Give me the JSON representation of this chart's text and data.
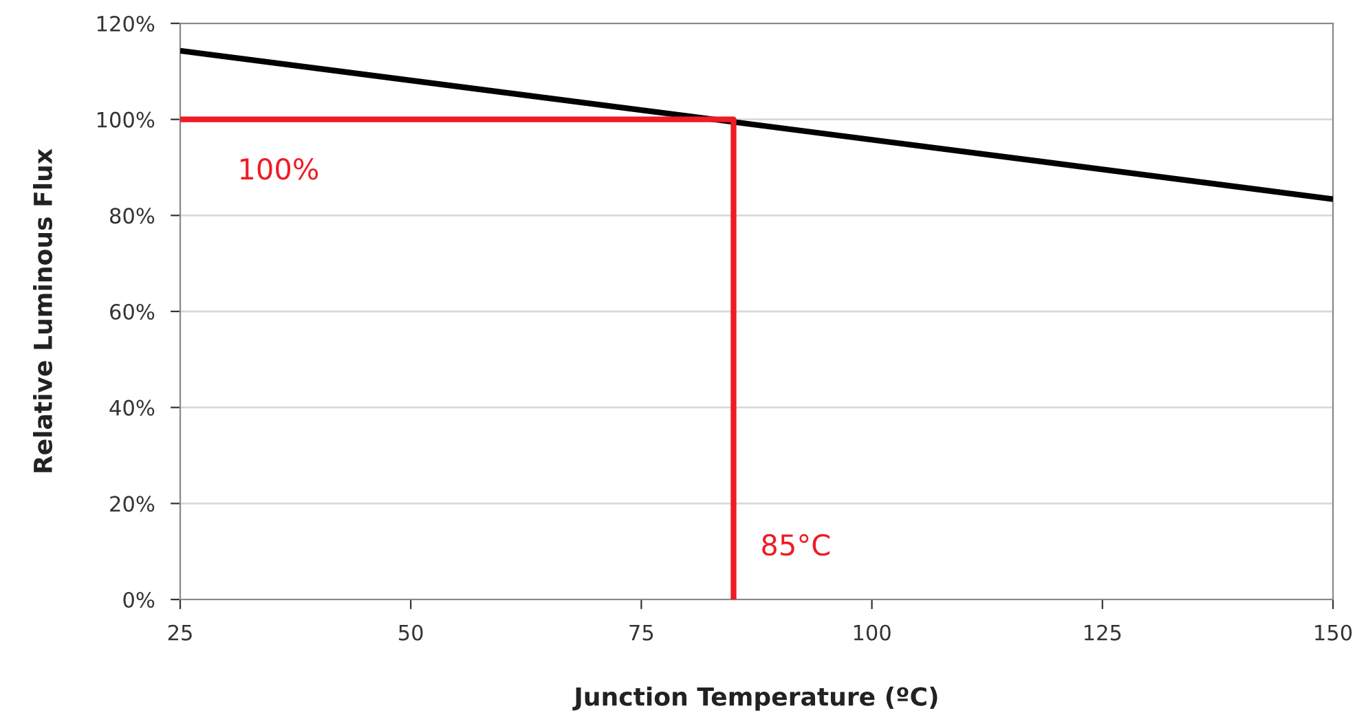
{
  "chart_data": {
    "type": "line",
    "xlabel": "Junction Temperature (ºC)",
    "ylabel": "Relative Luminous Flux",
    "xlim": [
      25,
      150
    ],
    "xticks": [
      25,
      50,
      75,
      100,
      125,
      150
    ],
    "ylim": [
      0,
      120
    ],
    "yticks": [
      {
        "value": 0,
        "label": "0%"
      },
      {
        "value": 20,
        "label": "20%"
      },
      {
        "value": 40,
        "label": "40%"
      },
      {
        "value": 60,
        "label": "60%"
      },
      {
        "value": 80,
        "label": "80%"
      },
      {
        "value": 100,
        "label": "100%"
      },
      {
        "value": 120,
        "label": "120%"
      }
    ],
    "grid": "y",
    "legend": false,
    "marker": "none",
    "line_style": "solid",
    "series": [
      {
        "color": "#000000",
        "x": [
          25,
          150
        ],
        "values": [
          114.3,
          83.4
        ]
      },
      {
        "color": "#ee1c25",
        "x": [
          25,
          85,
          85
        ],
        "values": [
          100,
          100,
          0
        ]
      }
    ],
    "annotations": [
      "100%",
      "85°C"
    ]
  }
}
